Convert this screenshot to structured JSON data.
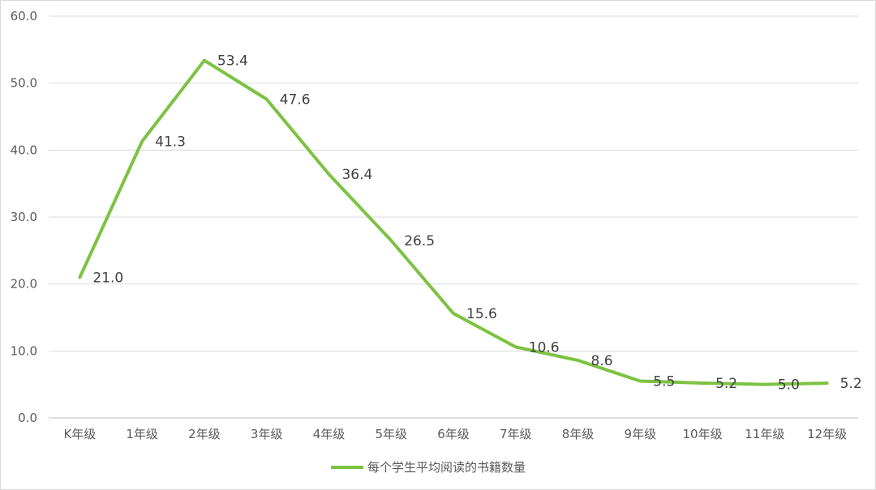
{
  "chart_data": {
    "type": "line",
    "categories": [
      "K年级",
      "1年级",
      "2年级",
      "3年级",
      "4年级",
      "5年级",
      "6年级",
      "7年级",
      "8年级",
      "9年级",
      "10年级",
      "11年级",
      "12年级"
    ],
    "series": [
      {
        "name": "每个学生平均阅读的书籍数量",
        "values": [
          21.0,
          41.3,
          53.4,
          47.6,
          36.4,
          26.5,
          15.6,
          10.6,
          8.6,
          5.5,
          5.2,
          5.0,
          5.2
        ],
        "data_labels": [
          "21.0",
          "41.3",
          "53.4",
          "47.6",
          "36.4",
          "26.5",
          "15.6",
          "10.6",
          "8.6",
          "5.5",
          "5.2",
          "5.0",
          "5.2"
        ],
        "color": "#7dc242"
      }
    ],
    "y_ticks": [
      "0.0",
      "10.0",
      "20.0",
      "30.0",
      "40.0",
      "50.0",
      "60.0"
    ],
    "ylim": [
      0,
      60
    ],
    "grid": "horizontal",
    "legend_position": "bottom"
  }
}
